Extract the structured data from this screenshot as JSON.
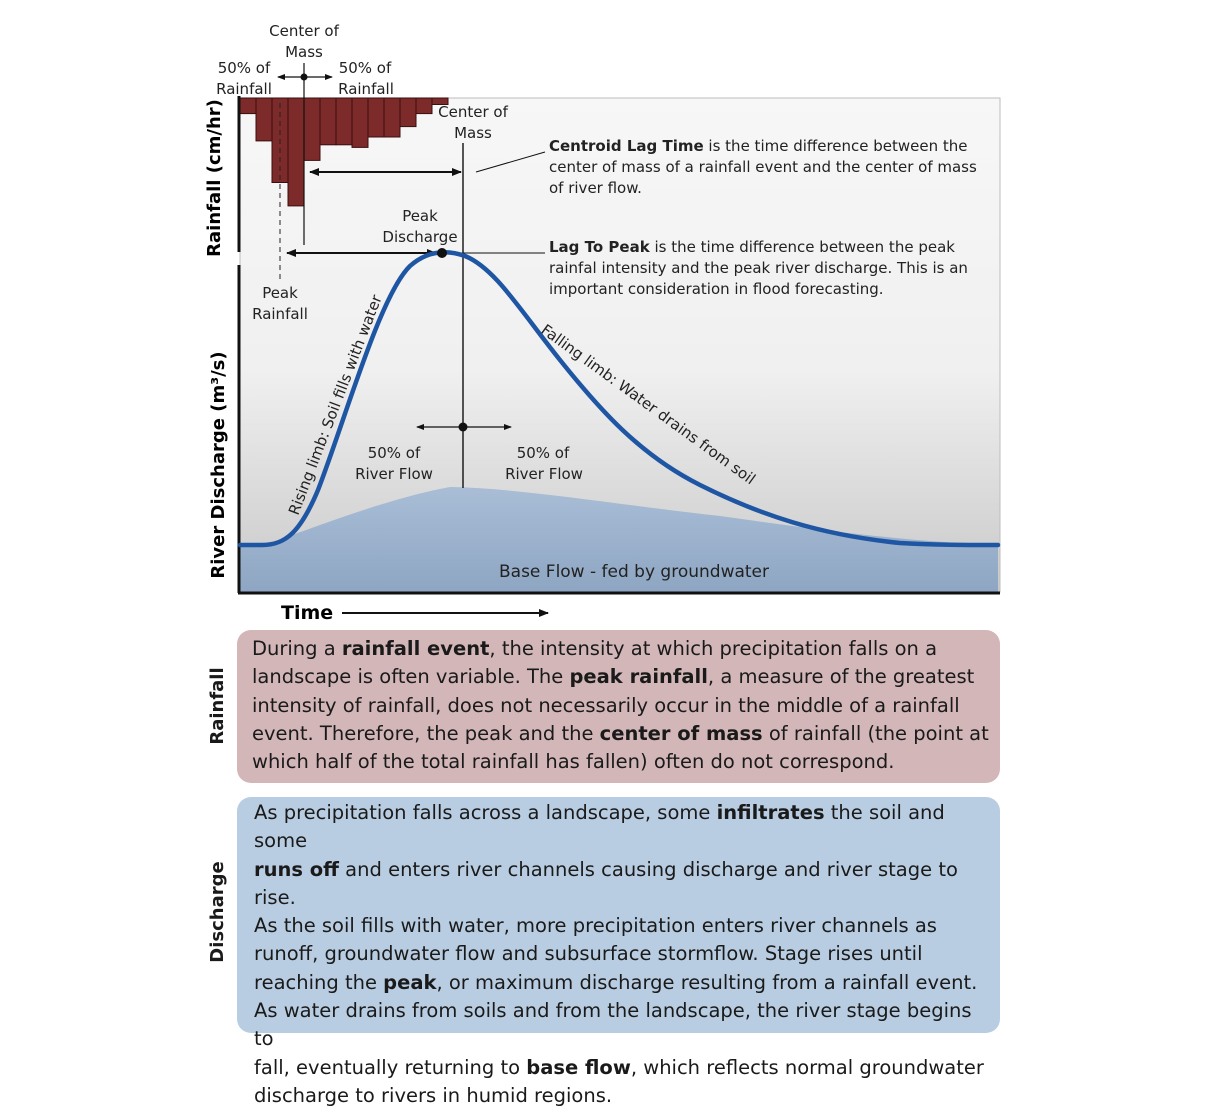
{
  "axes": {
    "rainfall_label": "Rainfall (cm/hr)",
    "discharge_label": "River Discharge (m³/s)",
    "time_label": "Time"
  },
  "hyetograph": {
    "bar_color": "#7d2a2a",
    "center_of_mass_label": [
      "Center of",
      "Mass"
    ],
    "left_half_label": [
      "50% of",
      "Rainfall"
    ],
    "right_half_label": [
      "50% of",
      "Rainfall"
    ],
    "peak_label": [
      "Peak",
      "Rainfall"
    ],
    "bar_depths": [
      0.12,
      0.33,
      0.65,
      0.83,
      0.48,
      0.36,
      0.36,
      0.38,
      0.3,
      0.3,
      0.22,
      0.12,
      0.05
    ]
  },
  "hydrograph": {
    "curve_color": "#1f56a3",
    "baseflow_color": "#9db2cc",
    "peak_label": [
      "Peak",
      "Discharge"
    ],
    "center_of_mass_label": [
      "Center of",
      "Mass"
    ],
    "left_half_label": [
      "50% of",
      "River Flow"
    ],
    "right_half_label": [
      "50% of",
      "River Flow"
    ],
    "rising_limb_label": "Rising limb: Soil fills with water",
    "falling_limb_label": "Falling limb: Water drains from soil",
    "baseflow_label": "Base Flow - fed by groundwater"
  },
  "annotations": {
    "centroid_lag": {
      "term": "Centroid Lag Time",
      "lines": [
        " is the time difference between the",
        "center of mass of a rainfall event and the center of mass",
        "of river flow."
      ]
    },
    "lag_to_peak": {
      "term": "Lag To Peak",
      "lines": [
        " is the time difference between the peak",
        "rainfal intensity and the peak river discharge.  This is an",
        "important consideration in flood forecasting."
      ]
    }
  },
  "rainfall_panel": {
    "side_label": "Rainfall",
    "background": "#d3b6b8",
    "segments": [
      {
        "t": "During a ",
        "b": false
      },
      {
        "t": "rainfall event",
        "b": true
      },
      {
        "t": ", the intensity at which precipitation falls on a\nlandscape is often variable.  The ",
        "b": false
      },
      {
        "t": "peak rainfall",
        "b": true
      },
      {
        "t": ", a measure of the greatest\nintensity of rainfall, does not necessarily occur in the middle of a rainfall\nevent.  Therefore, the peak and the ",
        "b": false
      },
      {
        "t": "center of mass",
        "b": true
      },
      {
        "t": " of rainfall (the point at\nwhich half of the total rainfall has fallen) often do not correspond.",
        "b": false
      }
    ]
  },
  "discharge_panel": {
    "side_label": "Discharge",
    "background": "#b9cde2",
    "segments": [
      {
        "t": "As precipitation falls across a landscape, some ",
        "b": false
      },
      {
        "t": "infiltrates",
        "b": true
      },
      {
        "t": " the soil and some\n",
        "b": false
      },
      {
        "t": "runs off",
        "b": true
      },
      {
        "t": " and enters river channels causing discharge and river stage to rise.\nAs the soil fills with water, more precipitation enters river channels as\nrunoff,  groundwater flow and subsurface stormflow.  Stage rises until\nreaching the ",
        "b": false
      },
      {
        "t": "peak",
        "b": true
      },
      {
        "t": ", or maximum discharge resulting from a rainfall event.\nAs water drains from soils and from the landscape, the river stage begins to\nfall, eventually returning to ",
        "b": false
      },
      {
        "t": "base flow",
        "b": true
      },
      {
        "t": ", which reflects normal groundwater\ndischarge to rivers in humid regions.",
        "b": false
      }
    ]
  }
}
